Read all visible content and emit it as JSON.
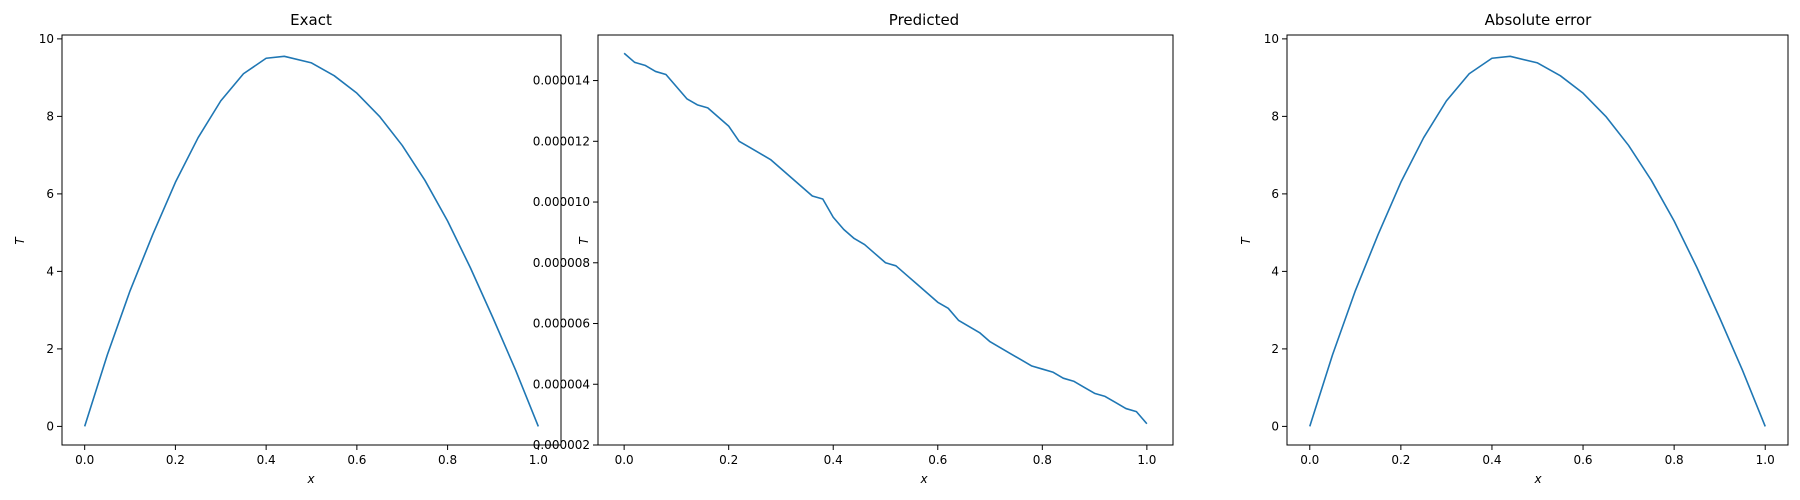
{
  "chart_data": [
    {
      "type": "line",
      "title": "Exact",
      "xlabel": "x",
      "ylabel": "T",
      "xlim": [
        -0.05,
        1.05
      ],
      "ylim": [
        -0.48,
        10.1
      ],
      "xticks": [
        0.0,
        0.2,
        0.4,
        0.6,
        0.8,
        1.0
      ],
      "xtick_labels": [
        "0.0",
        "0.2",
        "0.4",
        "0.6",
        "0.8",
        "1.0"
      ],
      "yticks": [
        0,
        2,
        4,
        6,
        8,
        10
      ],
      "ytick_labels": [
        "0",
        "2",
        "4",
        "6",
        "8",
        "10"
      ],
      "grid": false,
      "color": "#1f77b4",
      "series": [
        {
          "x": [
            0.0,
            0.05,
            0.1,
            0.15,
            0.2,
            0.25,
            0.3,
            0.35,
            0.4,
            0.44,
            0.5,
            0.55,
            0.6,
            0.65,
            0.7,
            0.75,
            0.8,
            0.85,
            0.9,
            0.95,
            1.0
          ],
          "values": [
            0.0,
            1.85,
            3.5,
            4.95,
            6.3,
            7.45,
            8.4,
            9.1,
            9.5,
            9.55,
            9.38,
            9.05,
            8.6,
            8.0,
            7.25,
            6.35,
            5.3,
            4.1,
            2.8,
            1.45,
            0.0
          ]
        }
      ]
    },
    {
      "type": "line",
      "title": "Predicted",
      "xlabel": "x",
      "ylabel": "T",
      "xlim": [
        -0.05,
        1.05
      ],
      "ylim": [
        2e-06,
        1.55e-05
      ],
      "xticks": [
        0.0,
        0.2,
        0.4,
        0.6,
        0.8,
        1.0
      ],
      "xtick_labels": [
        "0.0",
        "0.2",
        "0.4",
        "0.6",
        "0.8",
        "1.0"
      ],
      "yticks": [
        2e-06,
        4e-06,
        6e-06,
        8e-06,
        1e-05,
        1.2e-05,
        1.4e-05
      ],
      "ytick_labels": [
        "0.000002",
        "0.000004",
        "0.000006",
        "0.000008",
        "0.000010",
        "0.000012",
        "0.000014"
      ],
      "grid": false,
      "color": "#1f77b4",
      "series": [
        {
          "x": [
            0.0,
            0.02,
            0.04,
            0.06,
            0.08,
            0.1,
            0.12,
            0.14,
            0.16,
            0.18,
            0.2,
            0.22,
            0.24,
            0.26,
            0.28,
            0.3,
            0.32,
            0.34,
            0.36,
            0.38,
            0.4,
            0.42,
            0.44,
            0.46,
            0.48,
            0.5,
            0.52,
            0.54,
            0.56,
            0.58,
            0.6,
            0.62,
            0.64,
            0.66,
            0.68,
            0.7,
            0.72,
            0.74,
            0.76,
            0.78,
            0.8,
            0.82,
            0.84,
            0.86,
            0.88,
            0.9,
            0.92,
            0.94,
            0.96,
            0.98,
            1.0
          ],
          "values": [
            1.49e-05,
            1.46e-05,
            1.45e-05,
            1.43e-05,
            1.42e-05,
            1.38e-05,
            1.34e-05,
            1.32e-05,
            1.31e-05,
            1.28e-05,
            1.25e-05,
            1.2e-05,
            1.18e-05,
            1.16e-05,
            1.14e-05,
            1.11e-05,
            1.08e-05,
            1.05e-05,
            1.02e-05,
            1.01e-05,
            9.5e-06,
            9.1e-06,
            8.8e-06,
            8.6e-06,
            8.3e-06,
            8e-06,
            7.9e-06,
            7.6e-06,
            7.3e-06,
            7e-06,
            6.7e-06,
            6.5e-06,
            6.1e-06,
            5.9e-06,
            5.7e-06,
            5.4e-06,
            5.2e-06,
            5e-06,
            4.8e-06,
            4.6e-06,
            4.5e-06,
            4.4e-06,
            4.2e-06,
            4.1e-06,
            3.9e-06,
            3.7e-06,
            3.6e-06,
            3.4e-06,
            3.2e-06,
            3.1e-06,
            2.7e-06
          ]
        }
      ]
    },
    {
      "type": "line",
      "title": "Absolute error",
      "xlabel": "x",
      "ylabel": "T",
      "xlim": [
        -0.05,
        1.05
      ],
      "ylim": [
        -0.48,
        10.1
      ],
      "xticks": [
        0.0,
        0.2,
        0.4,
        0.6,
        0.8,
        1.0
      ],
      "xtick_labels": [
        "0.0",
        "0.2",
        "0.4",
        "0.6",
        "0.8",
        "1.0"
      ],
      "yticks": [
        0,
        2,
        4,
        6,
        8,
        10
      ],
      "ytick_labels": [
        "0",
        "2",
        "4",
        "6",
        "8",
        "10"
      ],
      "grid": false,
      "color": "#1f77b4",
      "series": [
        {
          "x": [
            0.0,
            0.05,
            0.1,
            0.15,
            0.2,
            0.25,
            0.3,
            0.35,
            0.4,
            0.44,
            0.5,
            0.55,
            0.6,
            0.65,
            0.7,
            0.75,
            0.8,
            0.85,
            0.9,
            0.95,
            1.0
          ],
          "values": [
            0.0,
            1.85,
            3.5,
            4.95,
            6.3,
            7.45,
            8.4,
            9.1,
            9.5,
            9.55,
            9.38,
            9.05,
            8.6,
            8.0,
            7.25,
            6.35,
            5.3,
            4.1,
            2.8,
            1.45,
            0.0
          ]
        }
      ]
    }
  ]
}
